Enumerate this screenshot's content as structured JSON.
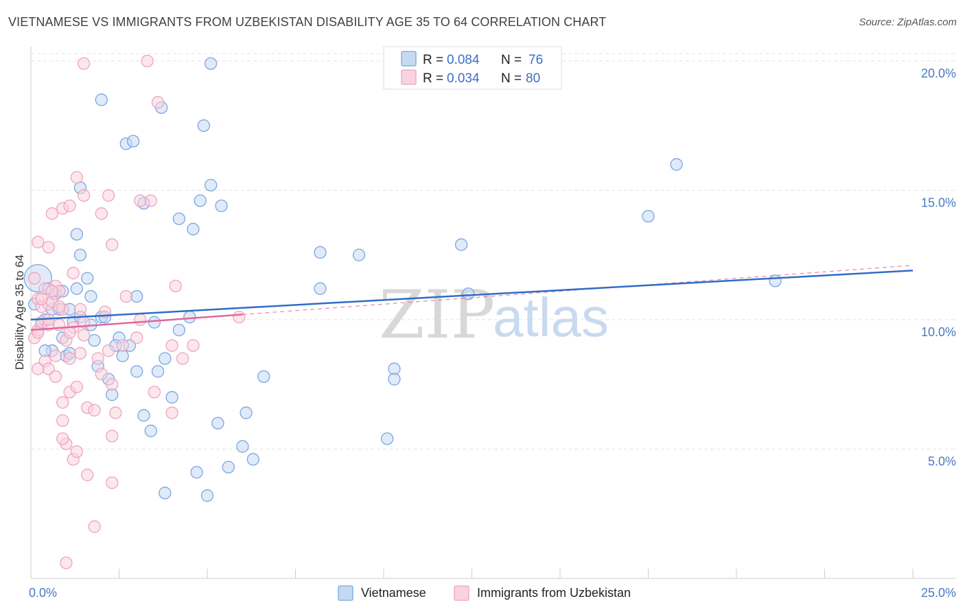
{
  "chart_data": {
    "type": "scatter",
    "title": "VIETNAMESE VS IMMIGRANTS FROM UZBEKISTAN DISABILITY AGE 35 TO 64 CORRELATION CHART",
    "source": "Source: ZipAtlas.com",
    "ylabel": "Disability Age 35 to 64",
    "xlabel": "",
    "xlim": [
      0,
      25
    ],
    "ylim": [
      0,
      20.5
    ],
    "x_tick_labels": [
      "0.0%",
      "25.0%"
    ],
    "y_ticks": [
      {
        "value": 5,
        "label": "5.0%"
      },
      {
        "value": 10,
        "label": "10.0%"
      },
      {
        "value": 15,
        "label": "15.0%"
      },
      {
        "value": 20,
        "label": "20.0%"
      }
    ],
    "grid": true,
    "legend_stats": [
      {
        "r_label": "R =",
        "r_value": "0.084",
        "n_label": "N =",
        "n_value": "76"
      },
      {
        "r_label": "R =",
        "r_value": "0.034",
        "n_label": "N =",
        "n_value": "80"
      }
    ],
    "watermark": {
      "zip": "ZIP",
      "atlas": "atlas"
    },
    "series": [
      {
        "name": "Vietnamese",
        "color": "#7aa6e0",
        "fill": "#c6d9f3",
        "line_color": "#2f6cc7",
        "trend": {
          "x0": 0,
          "y0": 10.0,
          "x1": 25,
          "y1": 11.9
        },
        "points": [
          [
            0.2,
            11.6
          ],
          [
            0.1,
            10.6
          ],
          [
            0.4,
            10.0
          ],
          [
            0.5,
            11.2
          ],
          [
            0.7,
            11.0
          ],
          [
            0.8,
            10.4
          ],
          [
            0.3,
            9.8
          ],
          [
            0.6,
            8.8
          ],
          [
            1.0,
            8.6
          ],
          [
            1.2,
            9.9
          ],
          [
            1.4,
            10.1
          ],
          [
            1.6,
            11.6
          ],
          [
            1.7,
            10.9
          ],
          [
            1.3,
            11.2
          ],
          [
            1.8,
            9.2
          ],
          [
            2.0,
            10.1
          ],
          [
            2.2,
            7.7
          ],
          [
            2.3,
            7.1
          ],
          [
            2.5,
            9.3
          ],
          [
            2.8,
            9.0
          ],
          [
            3.0,
            8.0
          ],
          [
            3.2,
            6.3
          ],
          [
            3.4,
            5.7
          ],
          [
            3.5,
            9.9
          ],
          [
            3.8,
            8.5
          ],
          [
            4.0,
            7.0
          ],
          [
            4.2,
            9.6
          ],
          [
            4.5,
            10.1
          ],
          [
            4.7,
            4.1
          ],
          [
            5.0,
            3.2
          ],
          [
            5.3,
            6.0
          ],
          [
            5.6,
            4.3
          ],
          [
            6.0,
            5.1
          ],
          [
            6.3,
            4.6
          ],
          [
            6.6,
            7.8
          ],
          [
            1.4,
            12.5
          ],
          [
            1.4,
            15.1
          ],
          [
            2.0,
            18.5
          ],
          [
            2.7,
            16.8
          ],
          [
            2.9,
            16.9
          ],
          [
            3.2,
            14.5
          ],
          [
            3.7,
            18.2
          ],
          [
            4.2,
            13.9
          ],
          [
            4.6,
            13.5
          ],
          [
            4.8,
            14.6
          ],
          [
            5.1,
            15.2
          ],
          [
            5.4,
            14.4
          ],
          [
            5.1,
            19.9
          ],
          [
            4.9,
            17.5
          ],
          [
            2.1,
            10.1
          ],
          [
            1.3,
            13.3
          ],
          [
            0.9,
            11.1
          ],
          [
            1.1,
            8.7
          ],
          [
            1.9,
            8.2
          ],
          [
            2.6,
            8.6
          ],
          [
            3.0,
            10.9
          ],
          [
            3.8,
            3.3
          ],
          [
            6.1,
            6.4
          ],
          [
            8.2,
            12.6
          ],
          [
            8.2,
            11.2
          ],
          [
            9.3,
            12.5
          ],
          [
            10.1,
            5.4
          ],
          [
            10.3,
            8.1
          ],
          [
            10.3,
            7.7
          ],
          [
            12.2,
            12.9
          ],
          [
            12.4,
            11.0
          ],
          [
            17.5,
            14.0
          ],
          [
            18.3,
            16.0
          ],
          [
            21.1,
            11.5
          ],
          [
            0.4,
            8.8
          ],
          [
            0.9,
            9.3
          ],
          [
            1.7,
            9.8
          ],
          [
            2.4,
            9.0
          ],
          [
            3.6,
            8.0
          ],
          [
            0.6,
            10.4
          ],
          [
            1.1,
            10.4
          ]
        ]
      },
      {
        "name": "Immigrants from Uzbekistan",
        "color": "#eea3bd",
        "fill": "#f9d3df",
        "line_color": "#e0679a",
        "trend": {
          "x0": 0,
          "y0": 9.6,
          "x1": 6.0,
          "y1": 10.2
        },
        "trend_dashed": {
          "x0": 6.0,
          "y0": 10.2,
          "x1": 25,
          "y1": 12.1
        },
        "points": [
          [
            0.1,
            11.6
          ],
          [
            0.2,
            10.8
          ],
          [
            0.3,
            10.5
          ],
          [
            0.4,
            11.2
          ],
          [
            0.5,
            10.6
          ],
          [
            0.6,
            10.7
          ],
          [
            0.7,
            11.3
          ],
          [
            0.8,
            11.1
          ],
          [
            0.9,
            10.4
          ],
          [
            0.1,
            9.3
          ],
          [
            0.2,
            9.6
          ],
          [
            0.3,
            9.9
          ],
          [
            0.5,
            9.8
          ],
          [
            0.8,
            9.8
          ],
          [
            1.0,
            9.2
          ],
          [
            1.2,
            9.7
          ],
          [
            1.4,
            10.4
          ],
          [
            1.5,
            9.4
          ],
          [
            0.4,
            8.4
          ],
          [
            0.5,
            8.1
          ],
          [
            0.7,
            7.8
          ],
          [
            0.9,
            6.8
          ],
          [
            1.1,
            7.2
          ],
          [
            1.3,
            7.4
          ],
          [
            1.6,
            6.6
          ],
          [
            1.8,
            6.5
          ],
          [
            2.0,
            7.9
          ],
          [
            2.3,
            7.5
          ],
          [
            0.9,
            6.1
          ],
          [
            1.0,
            5.2
          ],
          [
            1.2,
            4.6
          ],
          [
            1.3,
            4.9
          ],
          [
            1.6,
            4.0
          ],
          [
            2.3,
            3.7
          ],
          [
            1.8,
            2.0
          ],
          [
            1.0,
            0.6
          ],
          [
            0.2,
            13.0
          ],
          [
            0.5,
            12.8
          ],
          [
            0.6,
            14.1
          ],
          [
            0.9,
            14.3
          ],
          [
            1.1,
            14.4
          ],
          [
            1.3,
            15.5
          ],
          [
            1.5,
            14.8
          ],
          [
            2.0,
            14.1
          ],
          [
            2.3,
            12.9
          ],
          [
            2.2,
            14.8
          ],
          [
            3.1,
            14.6
          ],
          [
            3.4,
            14.6
          ],
          [
            3.6,
            18.4
          ],
          [
            3.3,
            20.0
          ],
          [
            1.5,
            19.9
          ],
          [
            1.2,
            11.8
          ],
          [
            2.1,
            10.3
          ],
          [
            2.7,
            10.9
          ],
          [
            4.1,
            11.3
          ],
          [
            4.0,
            9.0
          ],
          [
            4.6,
            9.0
          ],
          [
            4.3,
            8.5
          ],
          [
            2.2,
            8.8
          ],
          [
            2.6,
            9.0
          ],
          [
            1.4,
            8.7
          ],
          [
            0.2,
            8.1
          ],
          [
            0.5,
            10.0
          ],
          [
            0.3,
            10.8
          ],
          [
            0.6,
            11.1
          ],
          [
            2.3,
            5.5
          ],
          [
            0.9,
            5.4
          ],
          [
            3.0,
            9.3
          ],
          [
            3.1,
            10.0
          ],
          [
            3.5,
            7.2
          ],
          [
            4.0,
            6.4
          ],
          [
            5.9,
            10.1
          ],
          [
            1.1,
            8.5
          ],
          [
            2.4,
            6.4
          ],
          [
            1.9,
            8.5
          ],
          [
            0.7,
            8.6
          ],
          [
            1.1,
            9.5
          ],
          [
            1.5,
            9.9
          ],
          [
            0.8,
            10.5
          ],
          [
            0.2,
            9.5
          ]
        ]
      }
    ]
  }
}
